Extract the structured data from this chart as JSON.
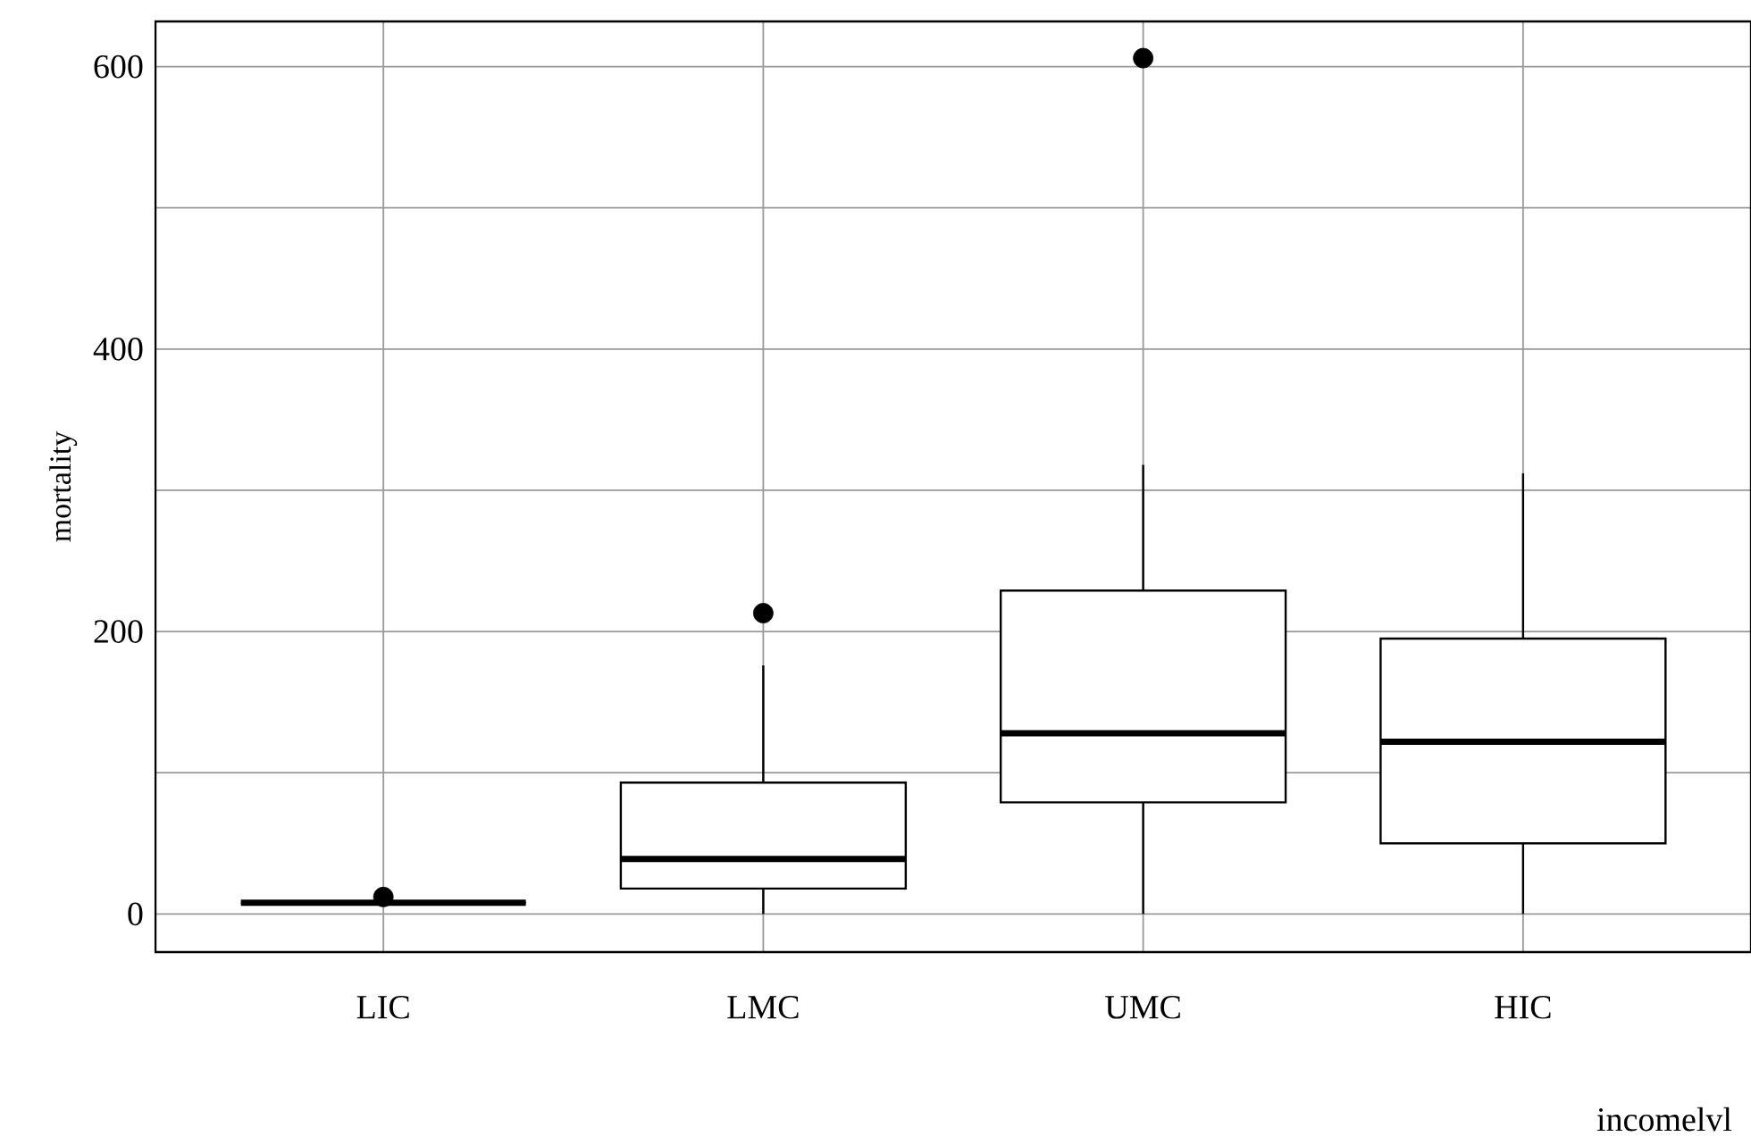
{
  "chart_data": {
    "type": "box",
    "categories": [
      "LIC",
      "LMC",
      "UMC",
      "HIC"
    ],
    "boxes": [
      {
        "low": 8,
        "q1": 8,
        "median": 8,
        "q3": 8,
        "high": 8,
        "outliers": [
          12
        ]
      },
      {
        "low": 0,
        "q1": 18,
        "median": 39,
        "q3": 93,
        "high": 176,
        "outliers": [
          213
        ]
      },
      {
        "low": 0,
        "q1": 79,
        "median": 128,
        "q3": 229,
        "high": 318,
        "outliers": [
          606
        ]
      },
      {
        "low": 0,
        "q1": 50,
        "median": 122,
        "q3": 195,
        "high": 312
      }
    ],
    "ylabel": "mortality",
    "xlabel": "incomelvl",
    "ylim": [
      -27,
      632
    ],
    "yticks": [
      0,
      {
        "value": 100,
        "label": null
      },
      200,
      {
        "value": 300,
        "label": null
      },
      400,
      {
        "value": 500,
        "label": null
      },
      600
    ],
    "grid": true
  }
}
